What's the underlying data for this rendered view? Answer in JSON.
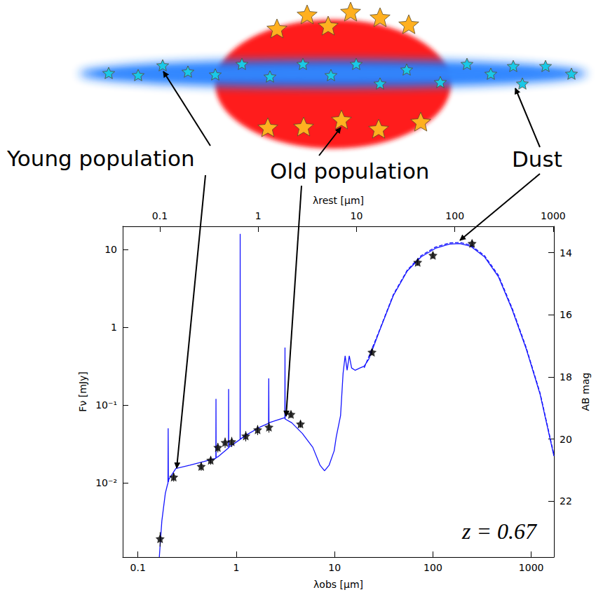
{
  "diagram": {
    "labels": {
      "young": "Young population",
      "old": "Old population",
      "dust": "Dust"
    }
  },
  "chart_data": {
    "type": "line",
    "log": true,
    "grid": false,
    "xlabel": "λobs [μm]",
    "x2label": "λrest [μm]",
    "ylabel": "Fν [mJy]",
    "y2label": "AB mag",
    "annotation": "z = 0.67",
    "xlim": [
      0.07,
      1700
    ],
    "xticks": [
      0.1,
      1,
      10,
      100,
      1000
    ],
    "x2lim": [
      0.0419,
      1018
    ],
    "x2ticks": [
      0.1,
      1,
      10,
      100,
      1000
    ],
    "ylim": [
      0.0011,
      20
    ],
    "yticks": [
      {
        "value": 0.01,
        "label": "10⁻²"
      },
      {
        "value": 0.1,
        "label": "10⁻¹"
      },
      1,
      10
    ],
    "y2lim": [
      23.8,
      13.15
    ],
    "y2ticks": [
      14,
      16,
      18,
      20,
      22
    ],
    "series": [
      {
        "type": "line",
        "color": "#1515ff",
        "line_style": "solid",
        "x": [
          0.165,
          0.175,
          0.19,
          0.2,
          0.202,
          0.203,
          0.204,
          0.206,
          0.243,
          0.337,
          0.47,
          0.62,
          0.622,
          0.624,
          0.65,
          0.834,
          0.836,
          0.838,
          0.9,
          1.094,
          1.096,
          1.098,
          1.26,
          1.75,
          2.13,
          2.14,
          2.15,
          2.43,
          3.1,
          3.12,
          3.13,
          3.14,
          3.67,
          4.7,
          6.0,
          7.1,
          7.9,
          8.8,
          9.9,
          10.4,
          11.5,
          12.2,
          12.8,
          13.4,
          14.1,
          14.9,
          16.2,
          18.1,
          20,
          22.3,
          28.6,
          39.6,
          55,
          76,
          106,
          147,
          188,
          241,
          334,
          463,
          641,
          888,
          1231,
          1700
        ],
        "values": [
          0.0011,
          0.0032,
          0.0073,
          0.0095,
          0.0098,
          0.05,
          0.0102,
          0.011,
          0.0152,
          0.0168,
          0.0187,
          0.0205,
          0.12,
          0.021,
          0.0215,
          0.028,
          0.16,
          0.0285,
          0.0303,
          0.036,
          16,
          0.0362,
          0.041,
          0.052,
          0.058,
          0.22,
          0.059,
          0.062,
          0.0686,
          0.067,
          0.55,
          0.066,
          0.059,
          0.043,
          0.0285,
          0.0168,
          0.0142,
          0.0168,
          0.0257,
          0.039,
          0.073,
          0.256,
          0.43,
          0.28,
          0.43,
          0.3,
          0.28,
          0.3,
          0.316,
          0.39,
          0.9,
          2.57,
          5.34,
          8.1,
          10.4,
          11.8,
          12.0,
          11.1,
          8.1,
          4.5,
          1.68,
          0.53,
          0.137,
          0.022
        ]
      },
      {
        "type": "line",
        "color": "#1515ff",
        "line_style": "dashed",
        "x": [
          20,
          28.6,
          39.6,
          55,
          76,
          106,
          147,
          188,
          241,
          334,
          463,
          641,
          888,
          1231,
          1700
        ],
        "values": [
          0.3,
          0.92,
          2.65,
          5.5,
          8.4,
          10.8,
          12.2,
          12.4,
          11.5,
          8.4,
          4.7,
          1.75,
          0.55,
          0.142,
          0.023
        ]
      },
      {
        "type": "scatter",
        "color": "#000000",
        "marker": "star",
        "x": [
          0.168,
          0.231,
          0.44,
          0.55,
          0.65,
          0.77,
          0.9,
          1.25,
          1.65,
          2.15,
          3.6,
          4.5,
          24,
          70,
          100,
          250
        ],
        "values": [
          0.0019,
          0.0118,
          0.0162,
          0.0195,
          0.0285,
          0.033,
          0.0337,
          0.04,
          0.048,
          0.052,
          0.076,
          0.057,
          0.48,
          6.9,
          8.5,
          12.1
        ],
        "yerr": [
          0.0004,
          0.0015,
          0.002,
          0.0025,
          0.004,
          0.005,
          0.005,
          0.006,
          0.007,
          0.008,
          0.008,
          0.006,
          0.04,
          0.7,
          0.8,
          1.2
        ]
      }
    ]
  }
}
